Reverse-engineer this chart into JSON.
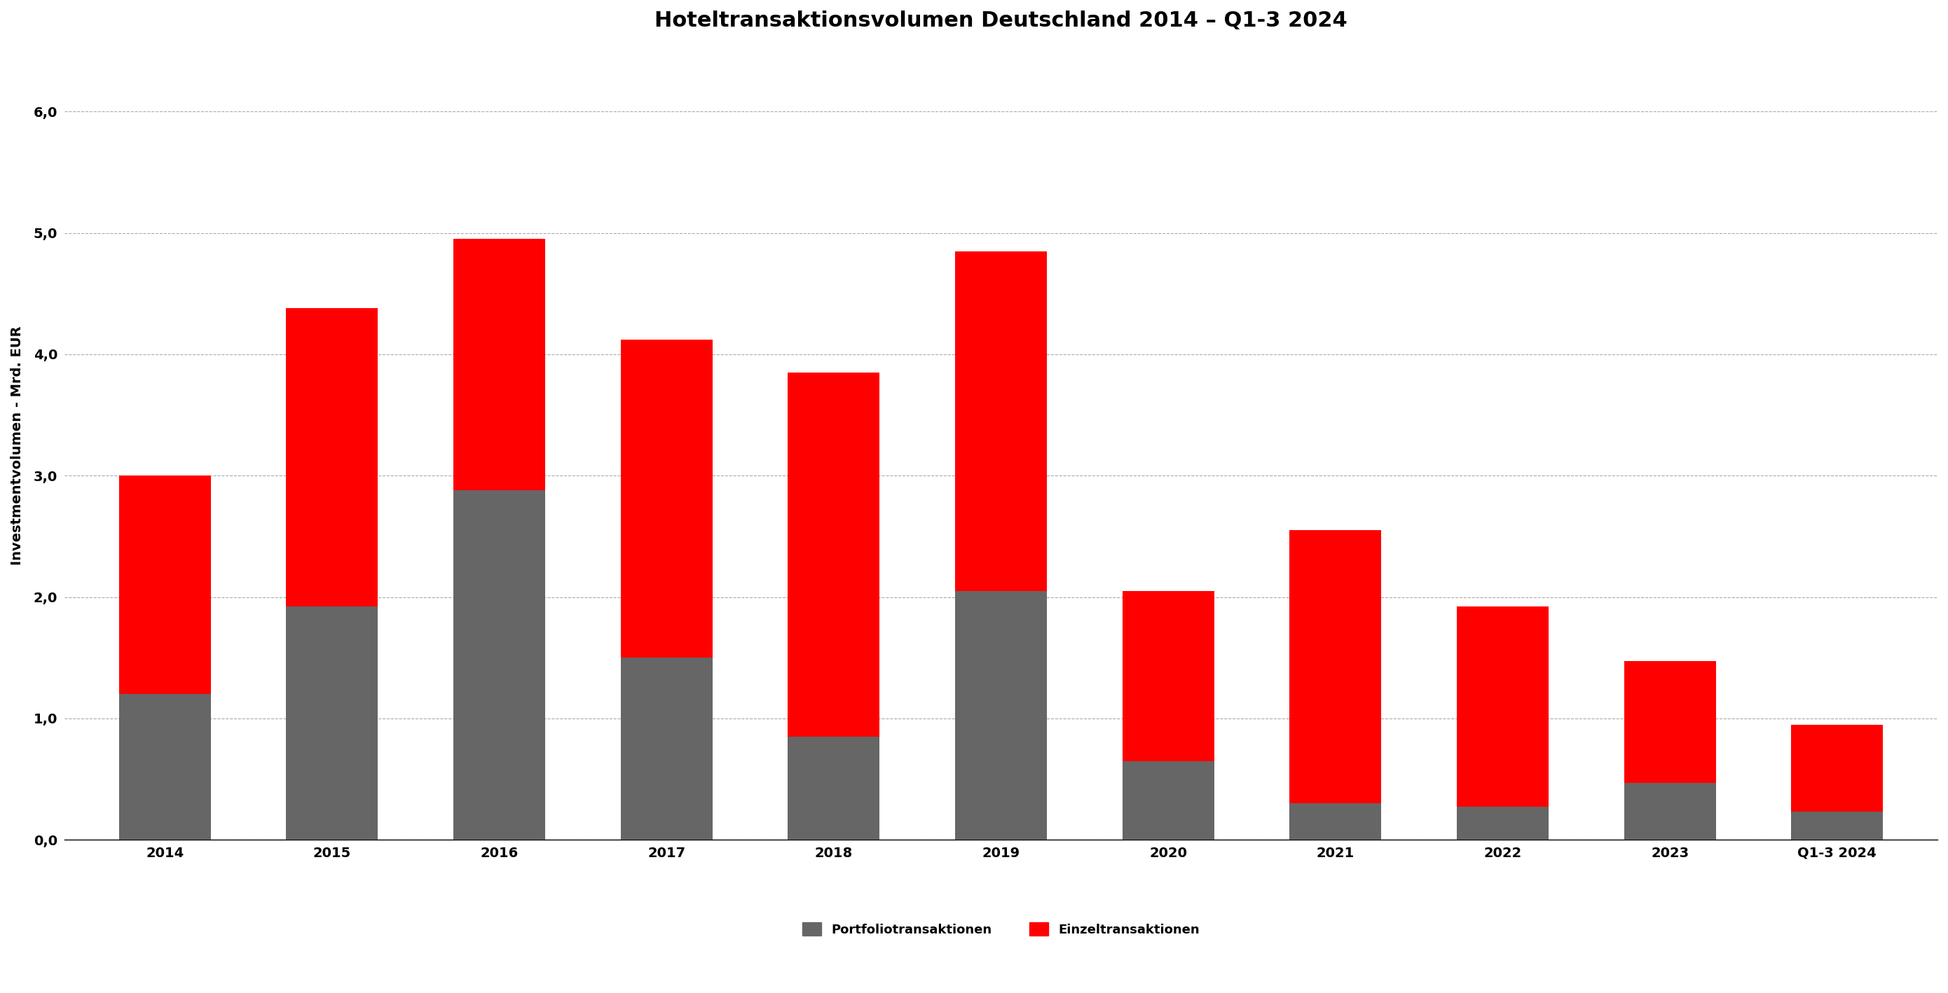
{
  "title": "Hoteltransaktionsvolumen Deutschland 2014 – Q1-3 2024",
  "ylabel": "Investmentvolumen - Mrd. EUR",
  "categories": [
    "2014",
    "2015",
    "2016",
    "2017",
    "2018",
    "2019",
    "2020",
    "2021",
    "2022",
    "2023",
    "Q1-3 2024"
  ],
  "portfolio": [
    1.2,
    1.92,
    2.88,
    1.5,
    0.85,
    2.05,
    0.65,
    0.3,
    0.27,
    0.47,
    0.23
  ],
  "einzel": [
    1.8,
    2.46,
    2.07,
    2.62,
    3.0,
    2.8,
    1.4,
    2.25,
    1.65,
    1.0,
    0.72
  ],
  "portfolio_color": "#666666",
  "einzel_color": "#ff0000",
  "background_color": "#ffffff",
  "title_fontsize": 22,
  "label_fontsize": 14,
  "tick_fontsize": 14,
  "legend_fontsize": 13,
  "ylim": [
    0,
    6.5
  ],
  "yticks": [
    0.0,
    1.0,
    2.0,
    3.0,
    4.0,
    5.0,
    6.0
  ],
  "ytick_labels": [
    "0,0",
    "1,0",
    "2,0",
    "3,0",
    "4,0",
    "5,0",
    "6,0"
  ],
  "legend_portfolio": "Portfoliotransaktionen",
  "legend_einzel": "Einzeltransaktionen",
  "bar_width": 0.55
}
